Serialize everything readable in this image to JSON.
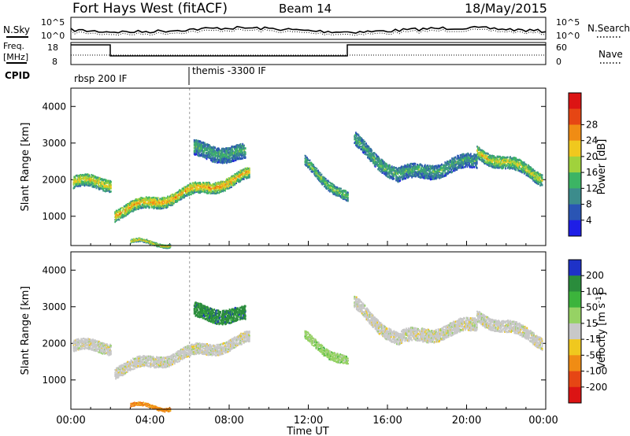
{
  "header": {
    "station": "Fort Hays West (fitACF)",
    "beam": "Beam 14",
    "date": "18/May/2015"
  },
  "top_panels": {
    "sky_label": "N.Sky",
    "search_label": "N.Search",
    "freq_label_1": "Freq.",
    "freq_label_2": "[MHz]",
    "nave_label": "Nave",
    "cpid_label": "CPID",
    "sky_tick_high": "10^5",
    "sky_tick_low": "10^0",
    "search_tick_high": "10^5",
    "search_tick_low": "10^0",
    "freq_tick_high": "18",
    "freq_tick_low": "8",
    "nave_tick_high": "60",
    "nave_tick_low": "0",
    "cpid_segments": [
      "rbsp 200 IF",
      "themis -3300 IF"
    ]
  },
  "chart_data": [
    {
      "type": "heatmap",
      "name": "power",
      "ylabel": "Slant Range [km]",
      "xlabel": "Time UT",
      "x_ticks": [
        "00:00",
        "04:00",
        "08:00",
        "12:00",
        "16:00",
        "20:00",
        "00:00"
      ],
      "y_ticks": [
        "1000",
        "2000",
        "3000",
        "4000"
      ],
      "ylim": [
        200,
        4500
      ],
      "xlim_hours": [
        0,
        24
      ],
      "colorbar": {
        "label": "Power [dB]",
        "ticks": [
          "4",
          "8",
          "12",
          "16",
          "20",
          "24",
          "28"
        ],
        "colors": [
          "#1e1ee6",
          "#2a55b4",
          "#3c8c8c",
          "#3cb464",
          "#a0d23c",
          "#f0c81e",
          "#f08c14",
          "#e64614",
          "#dc1414"
        ]
      },
      "echo_bands": [
        {
          "t0": 0.1,
          "t1": 2.0,
          "r0": 1950,
          "r1": 1950,
          "w": 320,
          "level": 0.62
        },
        {
          "t0": 2.2,
          "t1": 9.0,
          "r0": 1120,
          "r1": 2150,
          "w": 300,
          "level": 0.72
        },
        {
          "t0": 6.2,
          "t1": 8.8,
          "r0": 2850,
          "r1": 2750,
          "w": 420,
          "level": 0.35
        },
        {
          "t0": 11.8,
          "t1": 14.0,
          "r0": 2500,
          "r1": 1500,
          "w": 260,
          "level": 0.45
        },
        {
          "t0": 14.3,
          "t1": 16.5,
          "r0": 3100,
          "r1": 2150,
          "w": 360,
          "level": 0.38
        },
        {
          "t0": 16.5,
          "t1": 20.5,
          "r0": 2150,
          "r1": 2550,
          "w": 380,
          "level": 0.34
        },
        {
          "t0": 20.5,
          "t1": 23.8,
          "r0": 2800,
          "r1": 2100,
          "w": 330,
          "level": 0.58
        },
        {
          "t0": 3.0,
          "t1": 5.0,
          "r0": 280,
          "r1": 280,
          "w": 90,
          "level": 0.66
        }
      ]
    },
    {
      "type": "heatmap",
      "name": "velocity",
      "ylabel": "Slant Range [km]",
      "xlabel": "Time UT",
      "x_ticks": [
        "00:00",
        "04:00",
        "08:00",
        "12:00",
        "16:00",
        "20:00",
        "00:00"
      ],
      "y_ticks": [
        "1000",
        "2000",
        "3000",
        "4000"
      ],
      "ylim": [
        200,
        4500
      ],
      "xlim_hours": [
        0,
        24
      ],
      "colorbar": {
        "label": "Velocity [m s-1]",
        "ticks": [
          "200",
          "100",
          "50",
          "15",
          "-15",
          "-50",
          "-100",
          "-200"
        ],
        "colors": [
          "#1e32c8",
          "#2a8c3c",
          "#3cb43c",
          "#96d264",
          "#c8c8c8",
          "#f0c81e",
          "#f08c14",
          "#e64614",
          "#dc1414"
        ]
      },
      "echo_bands": [
        {
          "t0": 0.1,
          "t1": 2.0,
          "r0": 1950,
          "r1": 1950,
          "w": 300,
          "level": 4
        },
        {
          "t0": 2.2,
          "t1": 9.0,
          "r0": 1300,
          "r1": 2150,
          "w": 300,
          "level": 4
        },
        {
          "t0": 6.2,
          "t1": 8.8,
          "r0": 2900,
          "r1": 2800,
          "w": 380,
          "level": 1
        },
        {
          "t0": 11.8,
          "t1": 14.0,
          "r0": 2200,
          "r1": 1500,
          "w": 240,
          "level": 3
        },
        {
          "t0": 14.3,
          "t1": 16.5,
          "r0": 3100,
          "r1": 2150,
          "w": 340,
          "level": 4
        },
        {
          "t0": 16.5,
          "t1": 20.5,
          "r0": 2150,
          "r1": 2550,
          "w": 360,
          "level": 4
        },
        {
          "t0": 20.5,
          "t1": 23.8,
          "r0": 2800,
          "r1": 2100,
          "w": 320,
          "level": 4
        },
        {
          "t0": 3.0,
          "t1": 5.0,
          "r0": 280,
          "r1": 280,
          "w": 90,
          "level": 6
        }
      ]
    }
  ]
}
